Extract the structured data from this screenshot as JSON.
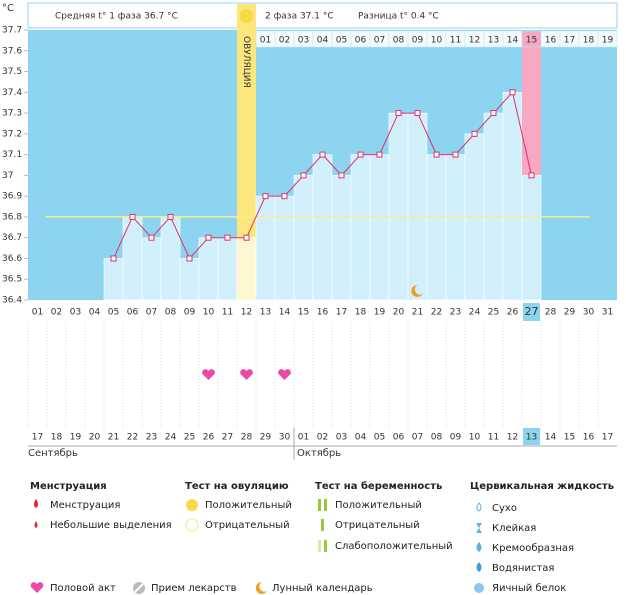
{
  "chart_data": {
    "type": "line",
    "y_unit": "°C",
    "header": {
      "phase1": "Средняя t° 1 фаза 36.7 °C",
      "phase2": "2 фаза 37.1 °C",
      "diff": "Разница t° 0.4 °C"
    },
    "ovulation_label": "ОВУЛЯЦИЯ",
    "categories": [
      "01",
      "02",
      "03",
      "04",
      "05",
      "06",
      "07",
      "08",
      "09",
      "10",
      "11",
      "12",
      "13",
      "14",
      "15",
      "16",
      "17",
      "18",
      "19",
      "20",
      "21",
      "22",
      "23",
      "24",
      "25",
      "26",
      "27",
      "28",
      "29",
      "30",
      "31"
    ],
    "values": [
      null,
      null,
      null,
      null,
      36.6,
      36.8,
      36.7,
      36.8,
      36.6,
      36.7,
      36.7,
      36.7,
      36.9,
      36.9,
      37.0,
      37.1,
      37.0,
      37.1,
      37.1,
      37.3,
      37.3,
      37.1,
      37.1,
      37.2,
      37.3,
      37.4,
      37.0,
      null,
      null,
      null,
      null
    ],
    "ylim": [
      36.4,
      37.7
    ],
    "yticks": [
      37.7,
      37.6,
      37.5,
      37.4,
      37.3,
      37.2,
      37.1,
      37,
      36.9,
      36.8,
      36.7,
      36.6,
      36.5,
      36.4
    ],
    "coverline": 36.8,
    "ovulation_day": "12",
    "highlight_day": "27",
    "phase2_days": [
      null,
      null,
      null,
      null,
      null,
      null,
      null,
      null,
      null,
      null,
      null,
      null,
      "01",
      "02",
      "03",
      "04",
      "05",
      "06",
      "07",
      "08",
      "09",
      "10",
      "11",
      "12",
      "13",
      "14",
      "15",
      "16",
      "17",
      "18",
      "19"
    ],
    "dates": [
      "17",
      "18",
      "19",
      "20",
      "21",
      "22",
      "23",
      "24",
      "25",
      "26",
      "27",
      "28",
      "29",
      "30",
      "01",
      "02",
      "03",
      "04",
      "05",
      "06",
      "07",
      "08",
      "09",
      "10",
      "11",
      "12",
      "13",
      "14",
      "15",
      "16",
      "17"
    ],
    "date_colors": [
      "#d0104c",
      "#d0104c",
      "#333",
      "#333",
      "#333",
      "#333",
      "#333",
      "#d0104c",
      "#d0104c",
      "#333",
      "#333",
      "#333",
      "#333",
      "#333",
      "#d0104c",
      "#d0104c",
      "#333",
      "#333",
      "#333",
      "#333",
      "#333",
      "#d0104c",
      "#d0104c",
      "#333",
      "#333",
      "#333",
      "#333",
      "#333",
      "#d0104c",
      "#d0104c",
      "#333"
    ],
    "months": [
      "Сентябрь",
      "Октябрь"
    ],
    "intercourse": [
      "10",
      "12",
      "14"
    ],
    "lunar": [
      "21"
    ],
    "line_color": "#e0306c",
    "bar_color": "#d2f0fc",
    "background_color": "#8dd4f1",
    "ovulation_color": "#fbe77c",
    "highlight_color": "#f7a9c3"
  },
  "legend": {
    "groups": [
      {
        "title": "Менструация",
        "items": [
          "Менструация",
          "Небольшие выделения"
        ]
      },
      {
        "title": "Тест на овуляцию",
        "items": [
          "Положительный",
          "Отрицательный"
        ]
      },
      {
        "title": "Тест на беременность",
        "items": [
          "Положительный",
          "Отрицательный",
          "Слабоположительный"
        ]
      },
      {
        "title": "Цервикальная жидкость",
        "items": [
          "Сухо",
          "Клейкая",
          "Кремообразная",
          "Водянистая",
          "Яичный белок"
        ]
      }
    ],
    "bottom": [
      "Половой акт",
      "Прием лекарств",
      "Лунный календарь"
    ]
  }
}
